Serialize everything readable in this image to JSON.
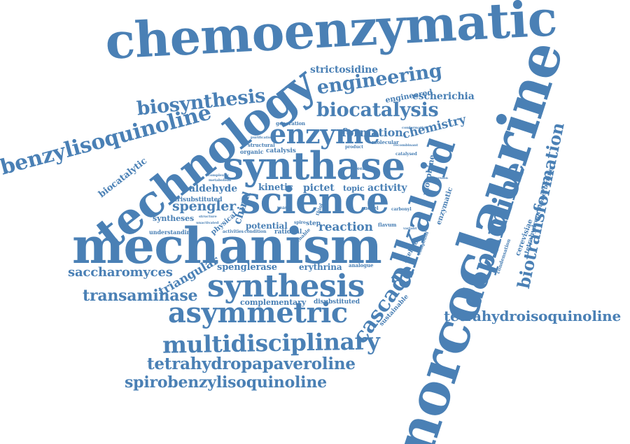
{
  "accent_color": "#4a80b5",
  "words": {
    "chemoenzymatic": "chemoenzymatic",
    "norcoclaurine": "norcoclaurine",
    "mechanism": "mechanism",
    "technology": "technology",
    "synthase": "synthase",
    "science": "science",
    "alkaloid": "alkaloid",
    "synthesis": "synthesis",
    "asymmetric": "asymmetric",
    "multidisciplinary": "multidisciplinary",
    "enzyme": "enzyme",
    "dopamine": "dopamine",
    "benzylisoquinoline": "benzylisoquinoline",
    "biosynthesis": "biosynthesis",
    "biocatalysis": "biocatalysis",
    "engineering": "engineering",
    "biotransformation": "biotransformation",
    "cascade": "cascade",
    "tetrahydroisoquinoline": "tetrahydroisoquinoline",
    "tetrahydropapaveroline": "tetrahydropapaveroline",
    "spirobenzylisoquinoline": "spirobenzylisoquinoline",
    "transaminase": "transaminase",
    "saccharomyces": "saccharomyces",
    "triangular": "triangular",
    "spengler": "spengler",
    "strictosidine": "strictosidine",
    "escherichia": "escherichia",
    "chemistry": "chemistry",
    "formation": "formation",
    "reaction": "reaction",
    "activity": "activity",
    "pictet": "pictet",
    "aldehyde": "aldehyde",
    "kinetic": "kinetic",
    "chiral": "chiral",
    "biocatalytic": "biocatalytic",
    "spenglerase": "spenglerase",
    "erythrina": "erythrina",
    "complementary": "complementary",
    "disubstituted": "disubstituted",
    "potential": "potential",
    "rational": "rational",
    "syntheses": "syntheses",
    "physical": "physical",
    "trisubstituted": "trisubstituted",
    "understanding": "understanding",
    "engineered": "engineered",
    "morphine": "morphine",
    "enzymatic": "enzymatic",
    "skeleton": "skeleton",
    "sustainable": "sustainable",
    "cerevisiae": "cerevisiae",
    "tetrahydroprotoberberine": "tetrahydroprotoberberine",
    "condensation": "condensation",
    "catalysis": "catalysis",
    "organic": "organic",
    "structural": "structural",
    "generation": "generation",
    "molecular": "molecular",
    "topic": "topic",
    "analogue": "analogue",
    "flavum": "flavum",
    "novel": "novel",
    "carbonyl": "carbonyl",
    "yeast": "yeast",
    "enable": "enable",
    "step": "step",
    "activities": "activities",
    "condition": "condition",
    "catalysed": "catalysed",
    "product": "product",
    "green": "green",
    "compound": "compound",
    "variant": "variant",
    "conformation": "conformation",
    "recombinant": "recombinant",
    "conversion": "conversion",
    "purification": "purification",
    "complexity": "complexity",
    "metabolism": "metabolism",
    "structure": "structure",
    "unactivated": "unactivated",
    "thiol": "thiol",
    "spiro": "spiro"
  }
}
